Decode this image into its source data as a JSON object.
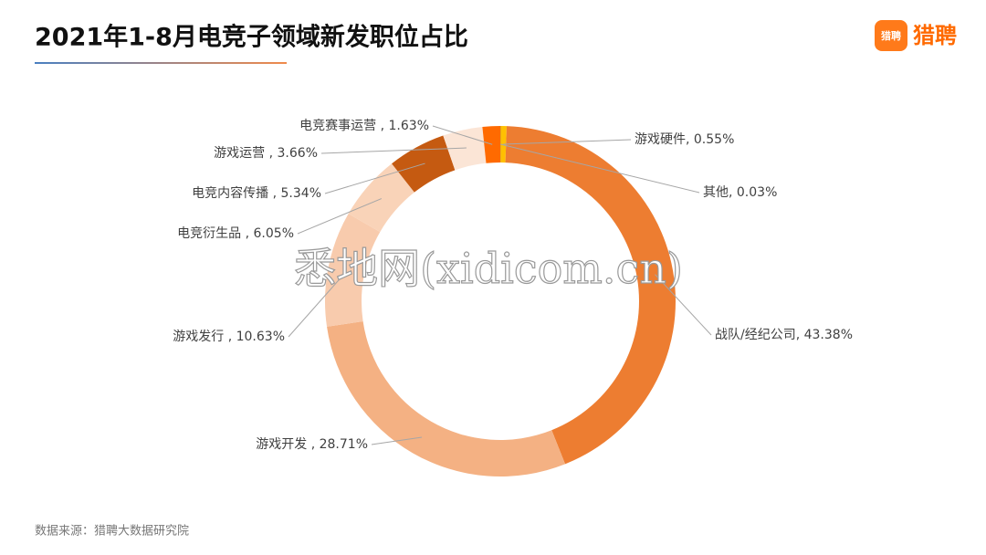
{
  "chart_data": {
    "type": "donut",
    "title": "2021年1-8月电竞子领域新发职位占比",
    "source": "数据来源：猎聘大数据研究院",
    "brand": "猎聘",
    "brand_icon": "猎聘",
    "watermark": "悉地网(xidicom.cn)",
    "values": [
      0.03,
      0.55,
      43.38,
      28.71,
      10.63,
      6.05,
      5.34,
      3.66,
      1.63
    ],
    "value_labels": [
      "其他, 0.03%",
      "游戏硬件, 0.55%",
      "战队/经纪公司, 43.38%",
      "游戏开发 , 28.71%",
      "游戏发行 , 10.63%",
      "电竞衍生品 , 6.05%",
      "电竞内容传播 , 5.34%",
      "游戏运营 , 3.66%",
      "电竞赛事运营 , 1.63%"
    ],
    "colors": [
      "#8a3b08",
      "#ffc000",
      "#ed7d31",
      "#f4b183",
      "#f8cbad",
      "#f9d3b8",
      "#c55a11",
      "#fbe5d6",
      "#ff6a00"
    ]
  }
}
